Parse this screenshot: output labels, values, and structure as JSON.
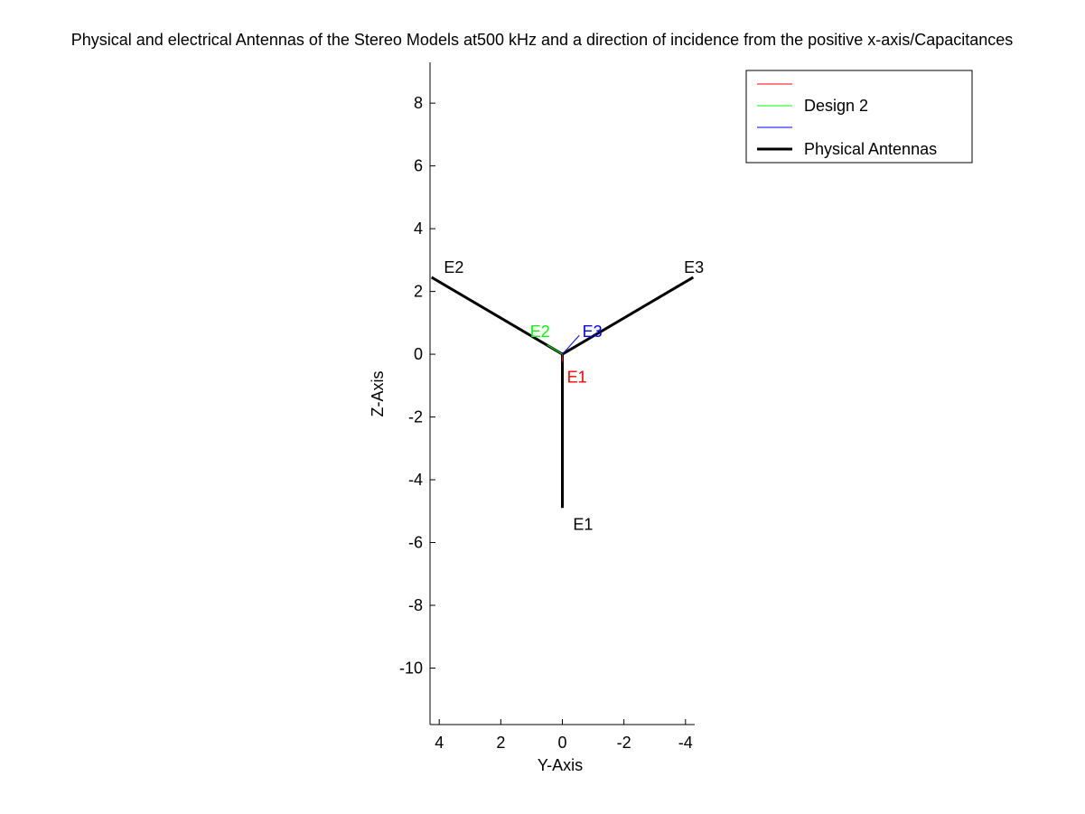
{
  "chart_data": {
    "type": "line",
    "title": "Physical and electrical Antennas of the Stereo Models at500 kHz and a direction of incidence from the positive x-axis/Capacitances",
    "xlabel": "Y-Axis",
    "ylabel": "Z-Axis",
    "xlim": [
      4.3,
      -4.3
    ],
    "ylim": [
      -11.8,
      9.3
    ],
    "x_reversed": true,
    "xticks": [
      4,
      2,
      0,
      -2,
      -4
    ],
    "yticks": [
      8,
      6,
      4,
      2,
      0,
      -2,
      -4,
      -6,
      -8,
      -10
    ],
    "xtick_labels": [
      "4",
      "2",
      "0",
      "-2",
      "-4"
    ],
    "ytick_labels": [
      "8",
      "6",
      "4",
      "2",
      "0",
      "-2",
      "-4",
      "-6",
      "-8",
      "-10"
    ],
    "grid": false,
    "legend_position": "top-right",
    "legend": [
      {
        "label": "",
        "color": "#ff0000",
        "width": 1
      },
      {
        "label": "Design 2",
        "color": "#00ff00",
        "width": 1
      },
      {
        "label": "",
        "color": "#0000ff",
        "width": 1
      },
      {
        "label": "Physical Antennas",
        "color": "#000000",
        "width": 3
      }
    ],
    "series": [
      {
        "name": "Physical Antennas",
        "color": "#000000",
        "width": 3,
        "segments": [
          {
            "label": "E1",
            "x": [
              0,
              0
            ],
            "y": [
              0,
              -4.9
            ]
          },
          {
            "label": "E2",
            "x": [
              0,
              4.25
            ],
            "y": [
              0,
              2.45
            ]
          },
          {
            "label": "E3",
            "x": [
              0,
              -4.25
            ],
            "y": [
              0,
              2.45
            ]
          }
        ]
      },
      {
        "color": "#ff0000",
        "width": 1,
        "segments": [
          {
            "label": "E1",
            "x": [
              0,
              0
            ],
            "y": [
              0,
              -0.25
            ]
          }
        ]
      },
      {
        "name": "Design 2",
        "color": "#00ff00",
        "width": 1,
        "segments": [
          {
            "label": "E2",
            "x": [
              0,
              0.5
            ],
            "y": [
              0,
              0.3
            ]
          }
        ]
      },
      {
        "color": "#0000ff",
        "width": 1,
        "segments": [
          {
            "label": "E3",
            "x": [
              0,
              -0.55
            ],
            "y": [
              0,
              0.6
            ]
          }
        ]
      }
    ],
    "annotations": [
      {
        "text": "E1",
        "x": -0.35,
        "y": -5.6,
        "color": "#000000"
      },
      {
        "text": "E2",
        "x": 3.85,
        "y": 2.6,
        "color": "#000000"
      },
      {
        "text": "E3",
        "x": -3.95,
        "y": 2.6,
        "color": "#000000"
      },
      {
        "text": "E1",
        "x": -0.15,
        "y": -0.9,
        "color": "#ff0000"
      },
      {
        "text": "E2",
        "x": 1.05,
        "y": 0.55,
        "color": "#00ff00"
      },
      {
        "text": "E3",
        "x": -0.65,
        "y": 0.55,
        "color": "#0000ff"
      }
    ]
  }
}
